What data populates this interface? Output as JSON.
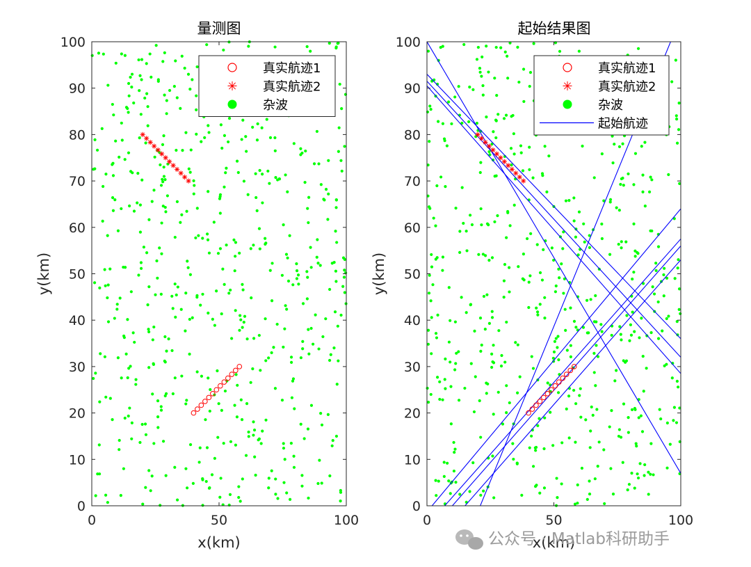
{
  "chart_data": [
    {
      "type": "scatter",
      "title": "量测图",
      "xlabel": "x(km)",
      "ylabel": "y(km)",
      "xlim": [
        0,
        100
      ],
      "ylim": [
        0,
        100
      ],
      "xticks": [
        "0",
        "50",
        "100"
      ],
      "yticks": [
        "0",
        "10",
        "20",
        "30",
        "40",
        "50",
        "60",
        "70",
        "80",
        "90",
        "100"
      ],
      "legend_position": "top-right",
      "series": [
        {
          "name": "真实航迹1",
          "marker": "circle-open",
          "color": "#ff0000",
          "x": [
            40,
            41.5,
            43,
            44.5,
            46,
            47.5,
            49,
            50.5,
            52,
            53.5,
            55,
            56.5,
            58
          ],
          "y": [
            20,
            20.833,
            21.667,
            22.5,
            23.333,
            24.167,
            25,
            25.833,
            26.667,
            27.5,
            28.333,
            29.167,
            30
          ]
        },
        {
          "name": "真实航迹2",
          "marker": "asterisk",
          "color": "#ff0000",
          "x": [
            20,
            21.5,
            23,
            24.5,
            26,
            27.5,
            29,
            30.5,
            32,
            33.5,
            35,
            36.5,
            38
          ],
          "y": [
            80,
            79.167,
            78.333,
            77.5,
            76.667,
            75.833,
            75,
            74.167,
            73.333,
            72.5,
            71.667,
            70.833,
            70
          ]
        },
        {
          "name": "杂波",
          "marker": "dot",
          "color": "#00ff00",
          "count": 600,
          "distribution": "uniform random over the plot area"
        }
      ]
    },
    {
      "type": "line",
      "title": "起始结果图",
      "xlabel": "x(km)",
      "ylabel": "y(km)",
      "xlim": [
        0,
        100
      ],
      "ylim": [
        0,
        100
      ],
      "xticks": [
        "0",
        "50",
        "100"
      ],
      "yticks": [
        "0",
        "10",
        "20",
        "30",
        "40",
        "50",
        "60",
        "70",
        "80",
        "90",
        "100"
      ],
      "legend_position": "top-right",
      "series": [
        {
          "name": "真实航迹1",
          "marker": "circle-open",
          "color": "#ff0000",
          "x": [
            40,
            41.5,
            43,
            44.5,
            46,
            47.5,
            49,
            50.5,
            52,
            53.5,
            55,
            56.5,
            58
          ],
          "y": [
            20,
            20.833,
            21.667,
            22.5,
            23.333,
            24.167,
            25,
            25.833,
            26.667,
            27.5,
            28.333,
            29.167,
            30
          ]
        },
        {
          "name": "真实航迹2",
          "marker": "asterisk",
          "color": "#ff0000",
          "x": [
            20,
            21.5,
            23,
            24.5,
            26,
            27.5,
            29,
            30.5,
            32,
            33.5,
            35,
            36.5,
            38
          ],
          "y": [
            80,
            79.167,
            78.333,
            77.5,
            76.667,
            75.833,
            75,
            74.167,
            73.333,
            72.5,
            71.667,
            70.833,
            70
          ]
        },
        {
          "name": "杂波",
          "marker": "dot",
          "color": "#00ff00",
          "count": 600,
          "distribution": "uniform random over the plot area"
        },
        {
          "name": "起始航迹",
          "marker": "none",
          "color": "#0000ff",
          "lines": [
            {
              "x": [
                0,
                100
              ],
              "y": [
                100,
                7
              ]
            },
            {
              "x": [
                0,
                100
              ],
              "y": [
                93,
                36
              ]
            },
            {
              "x": [
                0,
                100
              ],
              "y": [
                91.5,
                32
              ]
            },
            {
              "x": [
                0,
                100
              ],
              "y": [
                90.5,
                28.5
              ]
            },
            {
              "x": [
                21,
                96
              ],
              "y": [
                0,
                100
              ]
            },
            {
              "x": [
                2,
                100
              ],
              "y": [
                0,
                64
              ]
            },
            {
              "x": [
                7,
                100
              ],
              "y": [
                0,
                57.5
              ]
            },
            {
              "x": [
                10,
                100
              ],
              "y": [
                0,
                56
              ]
            },
            {
              "x": [
                15,
                100
              ],
              "y": [
                0,
                53
              ]
            }
          ]
        }
      ]
    }
  ],
  "watermark": "公众号 · Matlab科研助手"
}
